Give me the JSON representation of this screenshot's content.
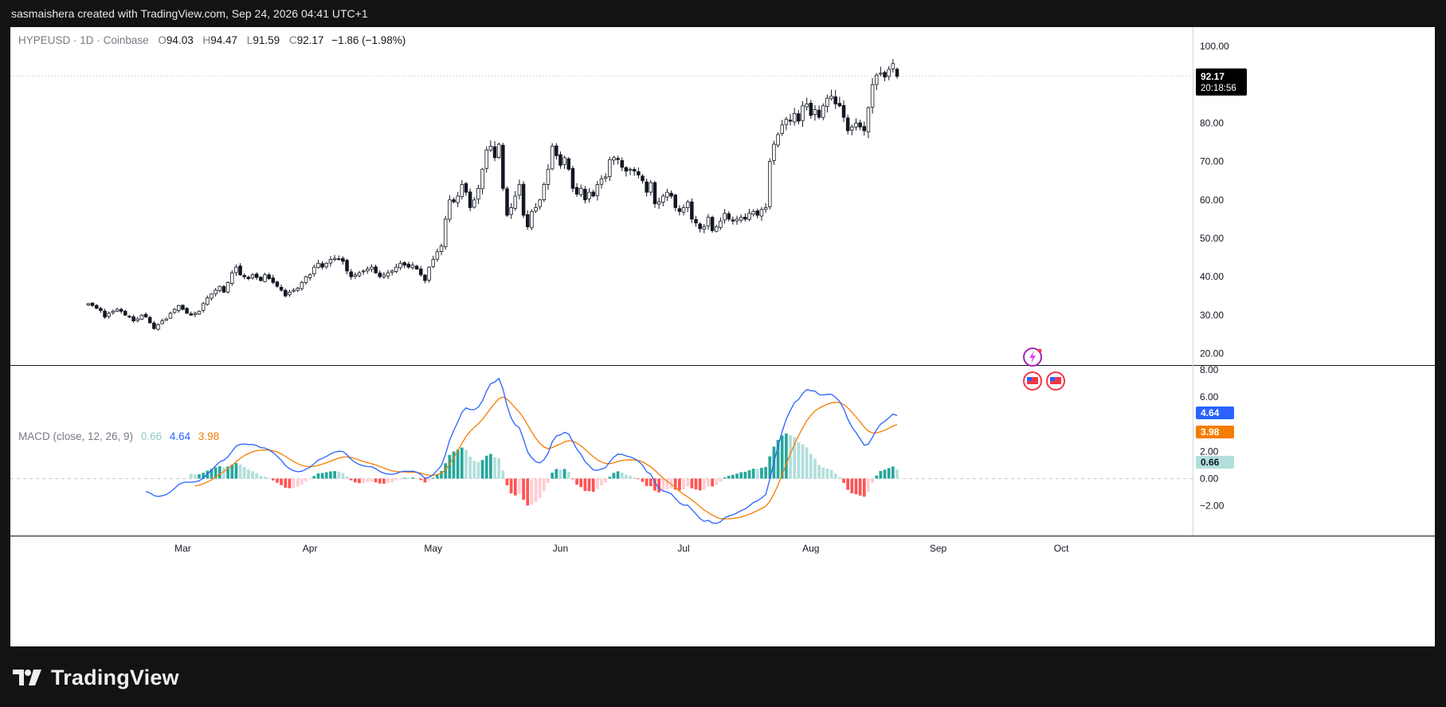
{
  "header": {
    "text": "sasmaishera created with TradingView.com, Sep 24, 2026 04:41 UTC+1"
  },
  "legend": {
    "symbol": "HYPEUSD",
    "sep1": "·",
    "interval": "1D",
    "sep2": "·",
    "exchange": "Coinbase",
    "o_label": "O",
    "o_value": "94.03",
    "h_label": "H",
    "h_value": "94.47",
    "l_label": "L",
    "l_value": "91.59",
    "c_label": "C",
    "c_value": "92.17",
    "change": "−1.86 (−1.98%)"
  },
  "price_badge": {
    "price": "92.17",
    "countdown": "20:18:56"
  },
  "macd_legend": {
    "title": "MACD (close, 12, 26, 9)",
    "hist": "0.66",
    "macd": "4.64",
    "signal": "3.98"
  },
  "macd_badges": {
    "macd": "4.64",
    "signal": "3.98",
    "hist": "0.66"
  },
  "footer": {
    "brand": "TradingView"
  },
  "colors": {
    "up": "#ffffff",
    "down": "#131722",
    "wick": "#131722",
    "macd_line": "#2962ff",
    "signal_line": "#f57c00",
    "hist_up_strong": "#26a69a",
    "hist_up_weak": "#b2dfdb",
    "hist_down_strong": "#ff5252",
    "hist_down_weak": "#ffcdd2"
  },
  "chart_data": {
    "type": "candlestick",
    "price_axis_ticks": [
      "100.00",
      "80.00",
      "70.00",
      "60.00",
      "50.00",
      "40.00",
      "30.00",
      "20.00"
    ],
    "price_axis_values": [
      100,
      80,
      70,
      60,
      50,
      40,
      30,
      20
    ],
    "price_range": [
      17,
      105
    ],
    "macd_axis_ticks": [
      "8.00",
      "6.00",
      "2.00",
      "0.00",
      "−2.00"
    ],
    "macd_axis_values": [
      8,
      6,
      2,
      0,
      -2
    ],
    "macd_range": [
      -4.2,
      8.3
    ],
    "x_ticks": [
      {
        "label": "Mar",
        "date": "2026-03-01"
      },
      {
        "label": "Apr",
        "date": "2026-04-01"
      },
      {
        "label": "May",
        "date": "2026-05-01"
      },
      {
        "label": "Jun",
        "date": "2026-06-01"
      },
      {
        "label": "Jul",
        "date": "2026-07-01"
      },
      {
        "label": "Aug",
        "date": "2026-08-01"
      },
      {
        "label": "Sep",
        "date": "2026-09-01"
      },
      {
        "label": "Oct",
        "date": "2026-10-01"
      }
    ],
    "x_range": [
      "2026-01-18",
      "2026-11-02"
    ],
    "start_date": "2026-02-06",
    "closes": [
      33.0,
      32.5,
      31.8,
      31.2,
      29.5,
      30.5,
      31.0,
      31.5,
      31.0,
      30.0,
      29.5,
      28.5,
      29.0,
      30.0,
      29.5,
      28.0,
      26.5,
      27.5,
      28.5,
      29.0,
      30.5,
      31.5,
      32.5,
      31.5,
      30.5,
      30.0,
      30.5,
      31.0,
      33.0,
      34.5,
      35.5,
      36.5,
      37.5,
      36.0,
      38.5,
      41.0,
      42.5,
      40.5,
      40.0,
      39.5,
      40.5,
      39.8,
      39.0,
      40.5,
      39.5,
      38.5,
      37.5,
      36.5,
      35.0,
      36.0,
      36.5,
      37.0,
      38.5,
      40.0,
      40.5,
      42.5,
      43.5,
      42.5,
      43.5,
      44.5,
      44.8,
      44.5,
      44.0,
      41.5,
      40.0,
      40.5,
      41.0,
      41.5,
      42.0,
      42.5,
      41.0,
      40.0,
      40.5,
      41.0,
      41.5,
      42.5,
      43.5,
      43.0,
      42.5,
      43.0,
      42.0,
      40.5,
      39.0,
      42.5,
      44.5,
      46.5,
      48.0,
      55.0,
      60.0,
      59.5,
      61.0,
      64.0,
      62.0,
      58.0,
      60.0,
      63.0,
      68.0,
      73.0,
      74.0,
      71.0,
      74.5,
      63.0,
      56.0,
      58.0,
      61.0,
      64.0,
      56.0,
      53.0,
      57.0,
      58.0,
      60.0,
      64.0,
      68.0,
      74.0,
      71.5,
      69.0,
      71.0,
      68.0,
      63.0,
      61.5,
      63.0,
      60.0,
      62.0,
      61.0,
      64.0,
      65.5,
      66.0,
      70.5,
      71.0,
      70.5,
      68.5,
      67.5,
      68.0,
      67.5,
      66.5,
      65.0,
      62.0,
      64.5,
      59.0,
      59.5,
      61.0,
      62.0,
      61.0,
      58.0,
      57.0,
      58.0,
      59.5,
      55.0,
      54.0,
      52.5,
      53.0,
      55.5,
      52.0,
      53.0,
      54.5,
      56.5,
      55.0,
      54.5,
      55.0,
      55.5,
      55.0,
      56.5,
      57.0,
      56.0,
      57.5,
      58.0,
      70.0,
      74.5,
      77.0,
      79.5,
      81.0,
      80.5,
      82.5,
      80.5,
      84.5,
      85.0,
      82.0,
      83.5,
      81.5,
      84.5,
      86.5,
      87.0,
      85.0,
      84.5,
      81.5,
      78.0,
      79.0,
      80.0,
      79.0,
      78.0,
      84.0,
      90.0,
      92.5,
      93.0,
      92.0,
      94.0,
      95.5,
      92.2
    ],
    "macd_last": 4.64,
    "signal_last": 3.98,
    "hist_last": 0.66,
    "current_price": 92.17
  }
}
